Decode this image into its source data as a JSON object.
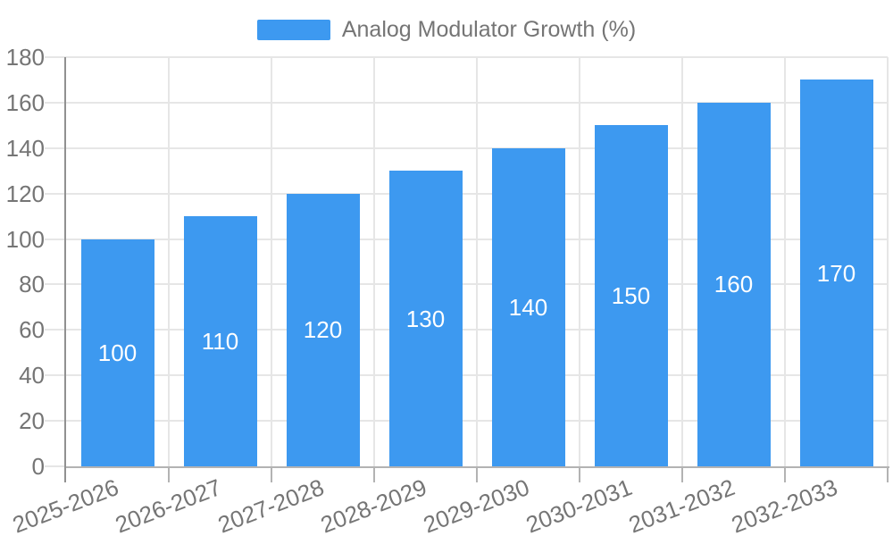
{
  "legend": {
    "label": "Analog Modulator Growth (%)"
  },
  "chart_data": {
    "type": "bar",
    "title": "Analog Modulator Growth (%)",
    "categories": [
      "2025-2026",
      "2026-2027",
      "2027-2028",
      "2028-2029",
      "2029-2030",
      "2030-2031",
      "2031-2032",
      "2032-2033"
    ],
    "values": [
      100,
      110,
      120,
      130,
      140,
      150,
      160,
      170
    ],
    "xlabel": "",
    "ylabel": "",
    "ylim": [
      0,
      180
    ],
    "ytick_step": 20,
    "grid": true,
    "legend_position": "top",
    "bar_color": "#3D99F0",
    "bar_label_color": "#FFFFFF",
    "text_color": "#757575",
    "grid_color": "#E6E6E6",
    "y_axis_line_color": "#919191",
    "x_axis_line_color": "#B3B3B3"
  }
}
